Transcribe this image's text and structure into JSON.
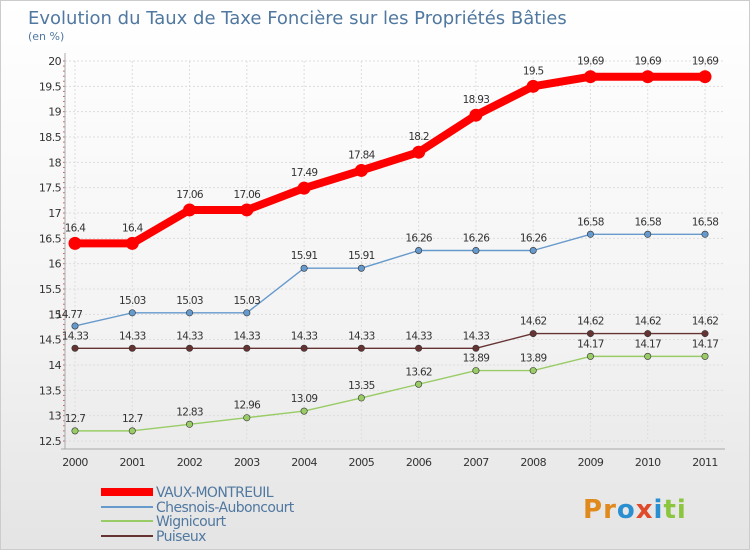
{
  "chart_data": {
    "type": "line",
    "title": "Evolution du Taux de Taxe Foncière sur les Propriétés Bâties",
    "subtitle": "(en %)",
    "xlabel": "",
    "ylabel": "",
    "x": [
      "2000",
      "2001",
      "2002",
      "2003",
      "2004",
      "2005",
      "2006",
      "2007",
      "2008",
      "2009",
      "2010",
      "2011"
    ],
    "ylim": [
      12.5,
      20
    ],
    "yticks": [
      "12.5",
      "13",
      "13.5",
      "14",
      "14.5",
      "15",
      "15.5",
      "16",
      "16.5",
      "17",
      "17.5",
      "18",
      "18.5",
      "19",
      "19.5",
      "20"
    ],
    "grid": true,
    "legend_position": "bottom-left",
    "series": [
      {
        "name": "VAUX-MONTREUIL",
        "color": "#ff0000",
        "values": [
          16.4,
          16.4,
          17.06,
          17.06,
          17.49,
          17.84,
          18.2,
          18.93,
          19.5,
          19.69,
          19.69,
          19.69
        ],
        "labels": [
          "16.4",
          "16.4",
          "17.06",
          "17.06",
          "17.49",
          "17.84",
          "18.2",
          "18.93",
          "19.5",
          "19.69",
          "19.69",
          "19.69"
        ]
      },
      {
        "name": "Chesnois-Auboncourt",
        "color": "#6699cc",
        "values": [
          14.77,
          15.03,
          15.03,
          15.03,
          15.91,
          15.91,
          16.26,
          16.26,
          16.26,
          16.58,
          16.58,
          16.58
        ],
        "labels": [
          "14.77",
          "15.03",
          "15.03",
          "15.03",
          "15.91",
          "15.91",
          "16.26",
          "16.26",
          "16.26",
          "16.58",
          "16.58",
          "16.58"
        ]
      },
      {
        "name": "Wignicourt",
        "color": "#99cc66",
        "values": [
          12.7,
          12.7,
          12.83,
          12.96,
          13.09,
          13.35,
          13.62,
          13.89,
          13.89,
          14.17,
          14.17,
          14.17
        ],
        "labels": [
          "12.7",
          "12.7",
          "12.83",
          "12.96",
          "13.09",
          "13.35",
          "13.62",
          "13.89",
          "13.89",
          "14.17",
          "14.17",
          "14.17"
        ]
      },
      {
        "name": "Puiseux",
        "color": "#663333",
        "values": [
          14.33,
          14.33,
          14.33,
          14.33,
          14.33,
          14.33,
          14.33,
          14.33,
          14.62,
          14.62,
          14.62,
          14.62
        ],
        "labels": [
          "14.33",
          "14.33",
          "14.33",
          "14.33",
          "14.33",
          "14.33",
          "14.33",
          "14.33",
          "14.62",
          "14.62",
          "14.62",
          "14.62"
        ]
      }
    ]
  },
  "logo": {
    "text": "Proxiti"
  }
}
